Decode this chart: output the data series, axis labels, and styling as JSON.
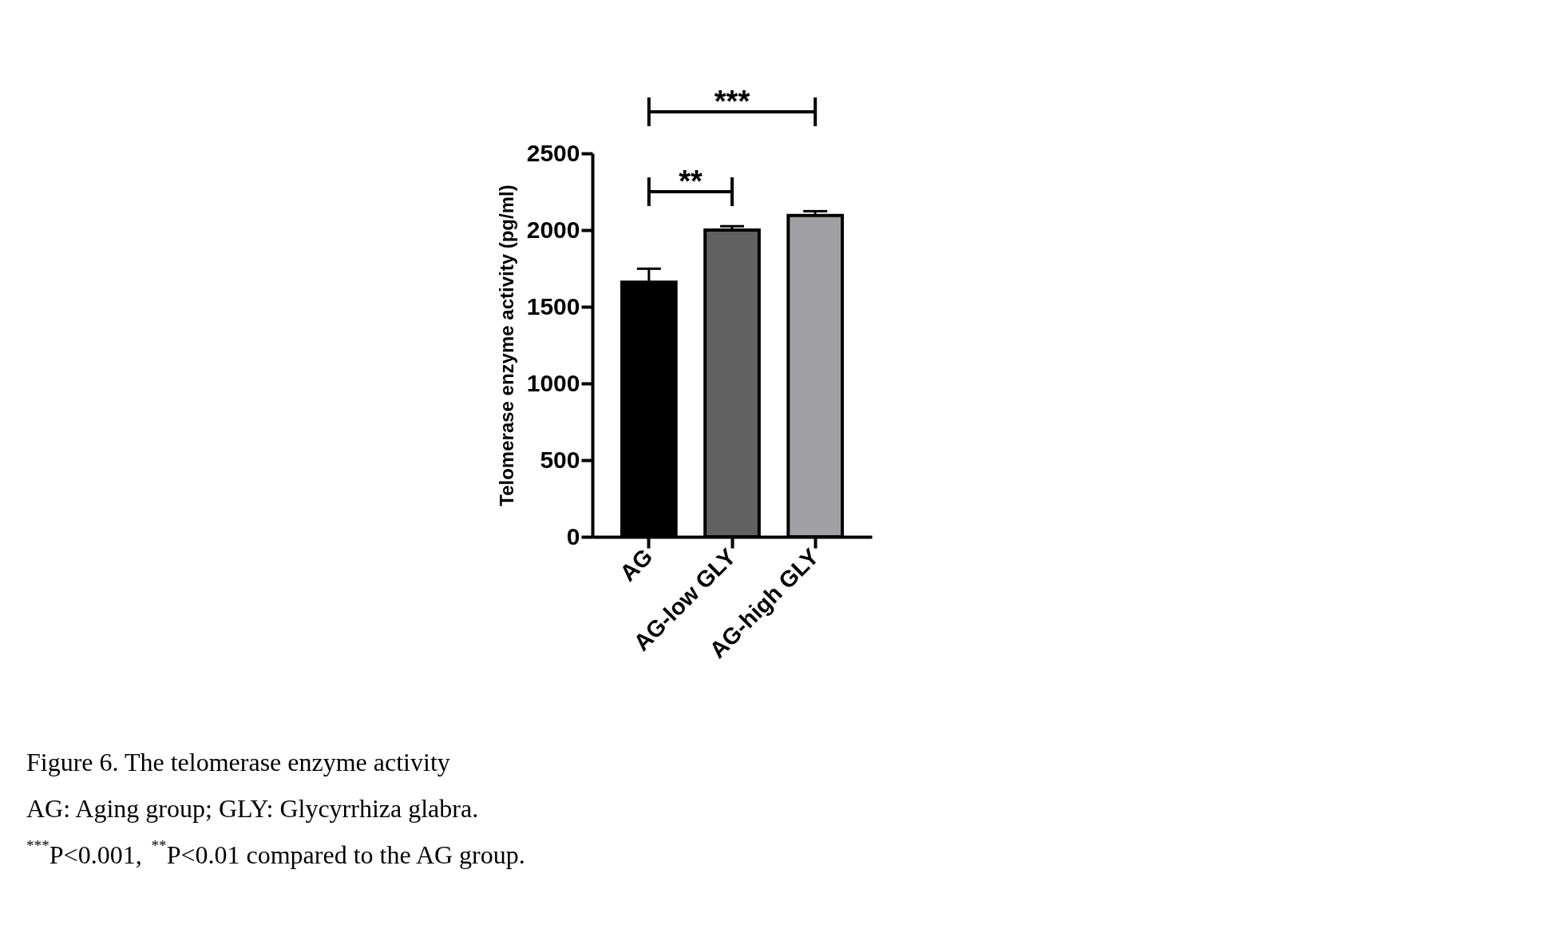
{
  "chart_data": {
    "type": "bar",
    "title": "Figure 6. The telomerase enzyme activity",
    "ylabel": "Telomerase enzyme activity (pg/ml)",
    "categories": [
      "AG",
      "AG-low GLY",
      "AG-high GLY"
    ],
    "values": [
      1660,
      2000,
      2095
    ],
    "errors": [
      88,
      25,
      28
    ],
    "colors": [
      "#000000",
      "#616161",
      "#a0a0a4"
    ],
    "ylim": [
      0,
      2500
    ],
    "yticks": [
      0,
      500,
      1000,
      1500,
      2000,
      2500
    ],
    "grid": false,
    "annotations": [
      "***",
      "**",
      "AG: Aging group; GLY: Glycyrrhiza glabra.",
      "$^{***}$P<0.001, $^{**}$P<0.01 compared to the AG group."
    ]
  }
}
